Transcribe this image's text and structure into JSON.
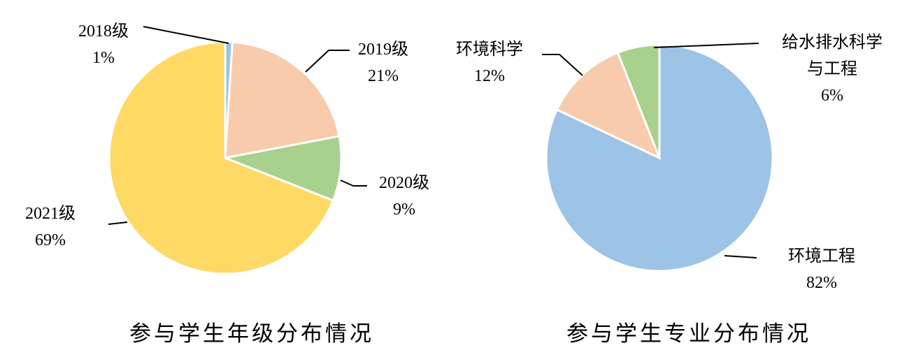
{
  "chart_data": [
    {
      "type": "pie",
      "title": "参与学生年级分布情况",
      "categories": [
        "2018级",
        "2019级",
        "2020级",
        "2021级"
      ],
      "values": [
        1,
        21,
        9,
        69
      ],
      "value_labels": [
        "1%",
        "21%",
        "9%",
        "69%"
      ],
      "colors": [
        "#9dc3e6",
        "#f8cbad",
        "#a9d18e",
        "#ffd966"
      ]
    },
    {
      "type": "pie",
      "title": "参与学生专业分布情况",
      "categories": [
        "环境工程",
        "环境科学",
        "给水排水科学与工程"
      ],
      "values": [
        82,
        12,
        6
      ],
      "value_labels": [
        "82%",
        "12%",
        "6%"
      ],
      "colors": [
        "#9dc3e6",
        "#f8cbad",
        "#a9d18e"
      ]
    }
  ]
}
